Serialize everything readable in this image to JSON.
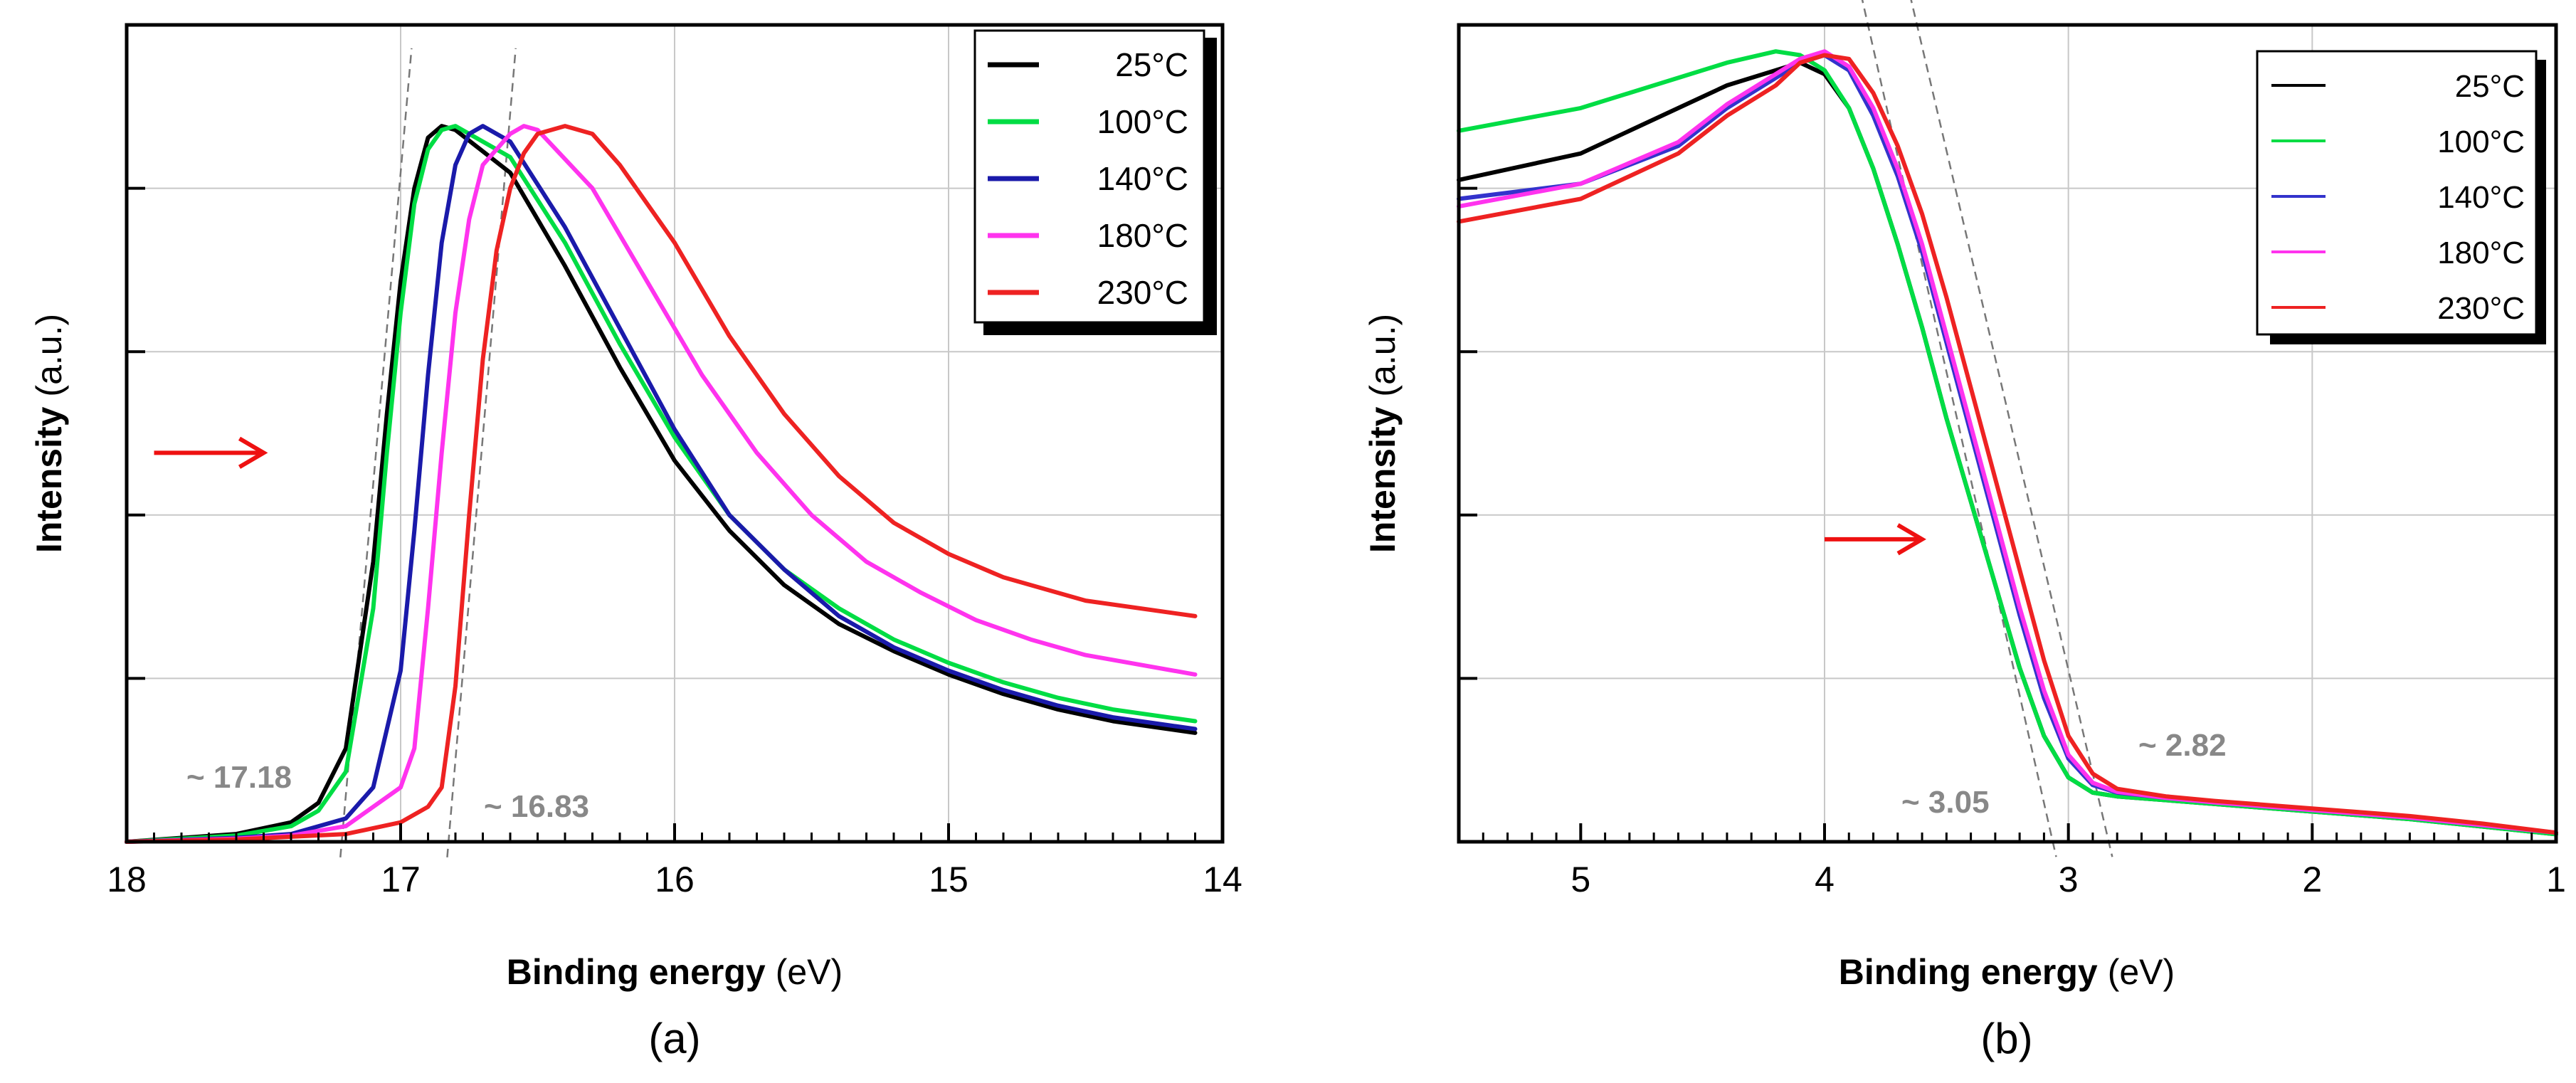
{
  "figure": {
    "subplot_labels": [
      "(a)",
      "(b)"
    ]
  },
  "chart_data": [
    {
      "type": "line",
      "panel_label": "(a)",
      "xlabel_bold": "Binding energy",
      "xlabel_unit": "(eV)",
      "ylabel_bold": "Intensity",
      "ylabel_unit": "(a.u.)",
      "xlim": [
        18,
        14
      ],
      "ylim": [
        0,
        1.0
      ],
      "x_ticks": [
        "18",
        "17",
        "16",
        "15",
        "14"
      ],
      "grid": true,
      "legend_position": "top-right",
      "series": [
        {
          "name": "25°C",
          "color": "#000000",
          "x": [
            18.0,
            17.6,
            17.4,
            17.3,
            17.2,
            17.1,
            17.05,
            17.0,
            16.95,
            16.9,
            16.85,
            16.8,
            16.6,
            16.4,
            16.2,
            16.0,
            15.8,
            15.6,
            15.4,
            15.2,
            15.0,
            14.8,
            14.6,
            14.4,
            14.1
          ],
          "y": [
            0.0,
            0.01,
            0.025,
            0.05,
            0.12,
            0.36,
            0.55,
            0.72,
            0.84,
            0.905,
            0.92,
            0.915,
            0.86,
            0.74,
            0.61,
            0.49,
            0.4,
            0.33,
            0.28,
            0.245,
            0.215,
            0.19,
            0.17,
            0.155,
            0.14
          ]
        },
        {
          "name": "100°C",
          "color": "#00dd44",
          "x": [
            18.0,
            17.6,
            17.4,
            17.3,
            17.2,
            17.1,
            17.05,
            17.0,
            16.95,
            16.9,
            16.85,
            16.8,
            16.6,
            16.4,
            16.2,
            16.0,
            15.8,
            15.6,
            15.4,
            15.2,
            15.0,
            14.8,
            14.6,
            14.4,
            14.1
          ],
          "y": [
            0.0,
            0.008,
            0.02,
            0.04,
            0.09,
            0.3,
            0.5,
            0.68,
            0.82,
            0.89,
            0.915,
            0.92,
            0.88,
            0.77,
            0.64,
            0.52,
            0.42,
            0.35,
            0.3,
            0.26,
            0.23,
            0.205,
            0.185,
            0.17,
            0.155
          ]
        },
        {
          "name": "140°C",
          "color": "#1a1aaa",
          "x": [
            18.0,
            17.6,
            17.4,
            17.2,
            17.1,
            17.0,
            16.95,
            16.9,
            16.85,
            16.8,
            16.75,
            16.7,
            16.6,
            16.4,
            16.2,
            16.0,
            15.8,
            15.6,
            15.4,
            15.2,
            15.0,
            14.8,
            14.6,
            14.4,
            14.1
          ],
          "y": [
            0.0,
            0.005,
            0.01,
            0.03,
            0.07,
            0.22,
            0.4,
            0.6,
            0.77,
            0.87,
            0.91,
            0.92,
            0.9,
            0.79,
            0.66,
            0.53,
            0.42,
            0.35,
            0.29,
            0.25,
            0.22,
            0.195,
            0.175,
            0.16,
            0.145
          ]
        },
        {
          "name": "180°C",
          "color": "#ff33ee",
          "x": [
            18.0,
            17.6,
            17.4,
            17.2,
            17.0,
            16.95,
            16.9,
            16.85,
            16.8,
            16.75,
            16.7,
            16.6,
            16.55,
            16.5,
            16.3,
            16.1,
            15.9,
            15.7,
            15.5,
            15.3,
            15.1,
            14.9,
            14.7,
            14.5,
            14.1
          ],
          "y": [
            0.0,
            0.004,
            0.008,
            0.02,
            0.07,
            0.12,
            0.3,
            0.5,
            0.68,
            0.8,
            0.87,
            0.91,
            0.92,
            0.915,
            0.84,
            0.72,
            0.6,
            0.5,
            0.42,
            0.36,
            0.32,
            0.285,
            0.26,
            0.24,
            0.215
          ]
        },
        {
          "name": "230°C",
          "color": "#ee2222",
          "x": [
            18.0,
            17.6,
            17.2,
            17.0,
            16.9,
            16.85,
            16.8,
            16.75,
            16.7,
            16.65,
            16.6,
            16.55,
            16.5,
            16.4,
            16.3,
            16.2,
            16.0,
            15.8,
            15.6,
            15.4,
            15.2,
            15.0,
            14.8,
            14.5,
            14.1
          ],
          "y": [
            0.0,
            0.003,
            0.01,
            0.025,
            0.045,
            0.07,
            0.2,
            0.42,
            0.62,
            0.76,
            0.84,
            0.885,
            0.91,
            0.92,
            0.91,
            0.87,
            0.77,
            0.65,
            0.55,
            0.47,
            0.41,
            0.37,
            0.34,
            0.31,
            0.29
          ]
        }
      ],
      "annotations": {
        "left_value": "~ 17.18",
        "right_value": "~ 16.83"
      },
      "tangent_lines": [
        {
          "x": [
            17.22,
            16.96
          ],
          "y": [
            -0.02,
            1.02
          ]
        },
        {
          "x": [
            16.83,
            16.58
          ],
          "y": [
            -0.02,
            1.02
          ]
        }
      ],
      "arrow": {
        "from": [
          17.9,
          0.5
        ],
        "to": [
          17.5,
          0.5
        ]
      }
    },
    {
      "type": "line",
      "panel_label": "(b)",
      "xlabel_bold": "Binding energy",
      "xlabel_unit": "(eV)",
      "ylabel_bold": "Intensity",
      "ylabel_unit": "(a.u.)",
      "xlim": [
        5.5,
        1
      ],
      "ylim": [
        0,
        1.0
      ],
      "x_ticks": [
        "5",
        "4",
        "3",
        "2",
        "1"
      ],
      "grid": true,
      "legend_position": "top-right",
      "series": [
        {
          "name": "25°C",
          "color": "#000000",
          "x": [
            5.5,
            5.0,
            4.6,
            4.4,
            4.2,
            4.1,
            4.0,
            3.9,
            3.8,
            3.7,
            3.6,
            3.5,
            3.4,
            3.3,
            3.2,
            3.1,
            3.0,
            2.9,
            2.8,
            2.6,
            2.4,
            2.0,
            1.6,
            1.3,
            1.0
          ],
          "y": [
            0.875,
            0.91,
            0.97,
            1.0,
            1.02,
            1.03,
            1.015,
            0.97,
            0.89,
            0.79,
            0.68,
            0.56,
            0.45,
            0.34,
            0.23,
            0.14,
            0.085,
            0.065,
            0.06,
            0.055,
            0.05,
            0.04,
            0.03,
            0.02,
            0.01
          ]
        },
        {
          "name": "100°C",
          "color": "#00dd44",
          "x": [
            5.5,
            5.0,
            4.6,
            4.4,
            4.2,
            4.1,
            4.0,
            3.9,
            3.8,
            3.7,
            3.6,
            3.5,
            3.4,
            3.3,
            3.2,
            3.1,
            3.0,
            2.9,
            2.8,
            2.6,
            2.4,
            2.0,
            1.6,
            1.3,
            1.0
          ],
          "y": [
            0.94,
            0.97,
            1.01,
            1.03,
            1.045,
            1.04,
            1.02,
            0.97,
            0.89,
            0.79,
            0.68,
            0.56,
            0.45,
            0.34,
            0.23,
            0.14,
            0.085,
            0.065,
            0.06,
            0.055,
            0.05,
            0.04,
            0.03,
            0.02,
            0.01
          ]
        },
        {
          "name": "140°C",
          "color": "#3333cc",
          "x": [
            5.5,
            5.0,
            4.6,
            4.4,
            4.2,
            4.1,
            4.0,
            3.9,
            3.8,
            3.7,
            3.6,
            3.5,
            3.4,
            3.3,
            3.2,
            3.1,
            3.0,
            2.9,
            2.8,
            2.6,
            2.4,
            2.0,
            1.6,
            1.3,
            1.0
          ],
          "y": [
            0.85,
            0.87,
            0.92,
            0.97,
            1.01,
            1.03,
            1.04,
            1.02,
            0.96,
            0.88,
            0.78,
            0.66,
            0.54,
            0.42,
            0.3,
            0.19,
            0.11,
            0.075,
            0.065,
            0.058,
            0.052,
            0.042,
            0.032,
            0.022,
            0.012
          ]
        },
        {
          "name": "180°C",
          "color": "#ff33ee",
          "x": [
            5.5,
            5.0,
            4.6,
            4.4,
            4.2,
            4.1,
            4.0,
            3.9,
            3.8,
            3.7,
            3.6,
            3.5,
            3.4,
            3.3,
            3.2,
            3.1,
            3.0,
            2.9,
            2.8,
            2.6,
            2.4,
            2.0,
            1.6,
            1.3,
            1.0
          ],
          "y": [
            0.84,
            0.87,
            0.925,
            0.975,
            1.015,
            1.035,
            1.045,
            1.025,
            0.97,
            0.89,
            0.79,
            0.67,
            0.55,
            0.43,
            0.31,
            0.2,
            0.115,
            0.078,
            0.066,
            0.058,
            0.052,
            0.042,
            0.032,
            0.022,
            0.012
          ]
        },
        {
          "name": "230°C",
          "color": "#ee2222",
          "x": [
            5.5,
            5.0,
            4.6,
            4.4,
            4.2,
            4.1,
            4.0,
            3.9,
            3.8,
            3.7,
            3.6,
            3.5,
            3.4,
            3.3,
            3.2,
            3.1,
            3.0,
            2.9,
            2.8,
            2.6,
            2.4,
            2.0,
            1.6,
            1.3,
            1.0
          ],
          "y": [
            0.82,
            0.85,
            0.91,
            0.96,
            1.0,
            1.03,
            1.04,
            1.035,
            0.99,
            0.92,
            0.83,
            0.72,
            0.6,
            0.48,
            0.36,
            0.24,
            0.14,
            0.09,
            0.07,
            0.06,
            0.054,
            0.044,
            0.034,
            0.024,
            0.012
          ]
        }
      ],
      "annotations": {
        "left_value": "~ 3.05",
        "right_value": "~ 2.82"
      },
      "tangent_lines": [
        {
          "x": [
            3.85,
            3.05
          ],
          "y": [
            1.12,
            -0.02
          ]
        },
        {
          "x": [
            3.65,
            2.82
          ],
          "y": [
            1.12,
            -0.02
          ]
        }
      ],
      "arrow": {
        "from": [
          4.0,
          0.4
        ],
        "to": [
          3.6,
          0.4
        ]
      }
    }
  ]
}
